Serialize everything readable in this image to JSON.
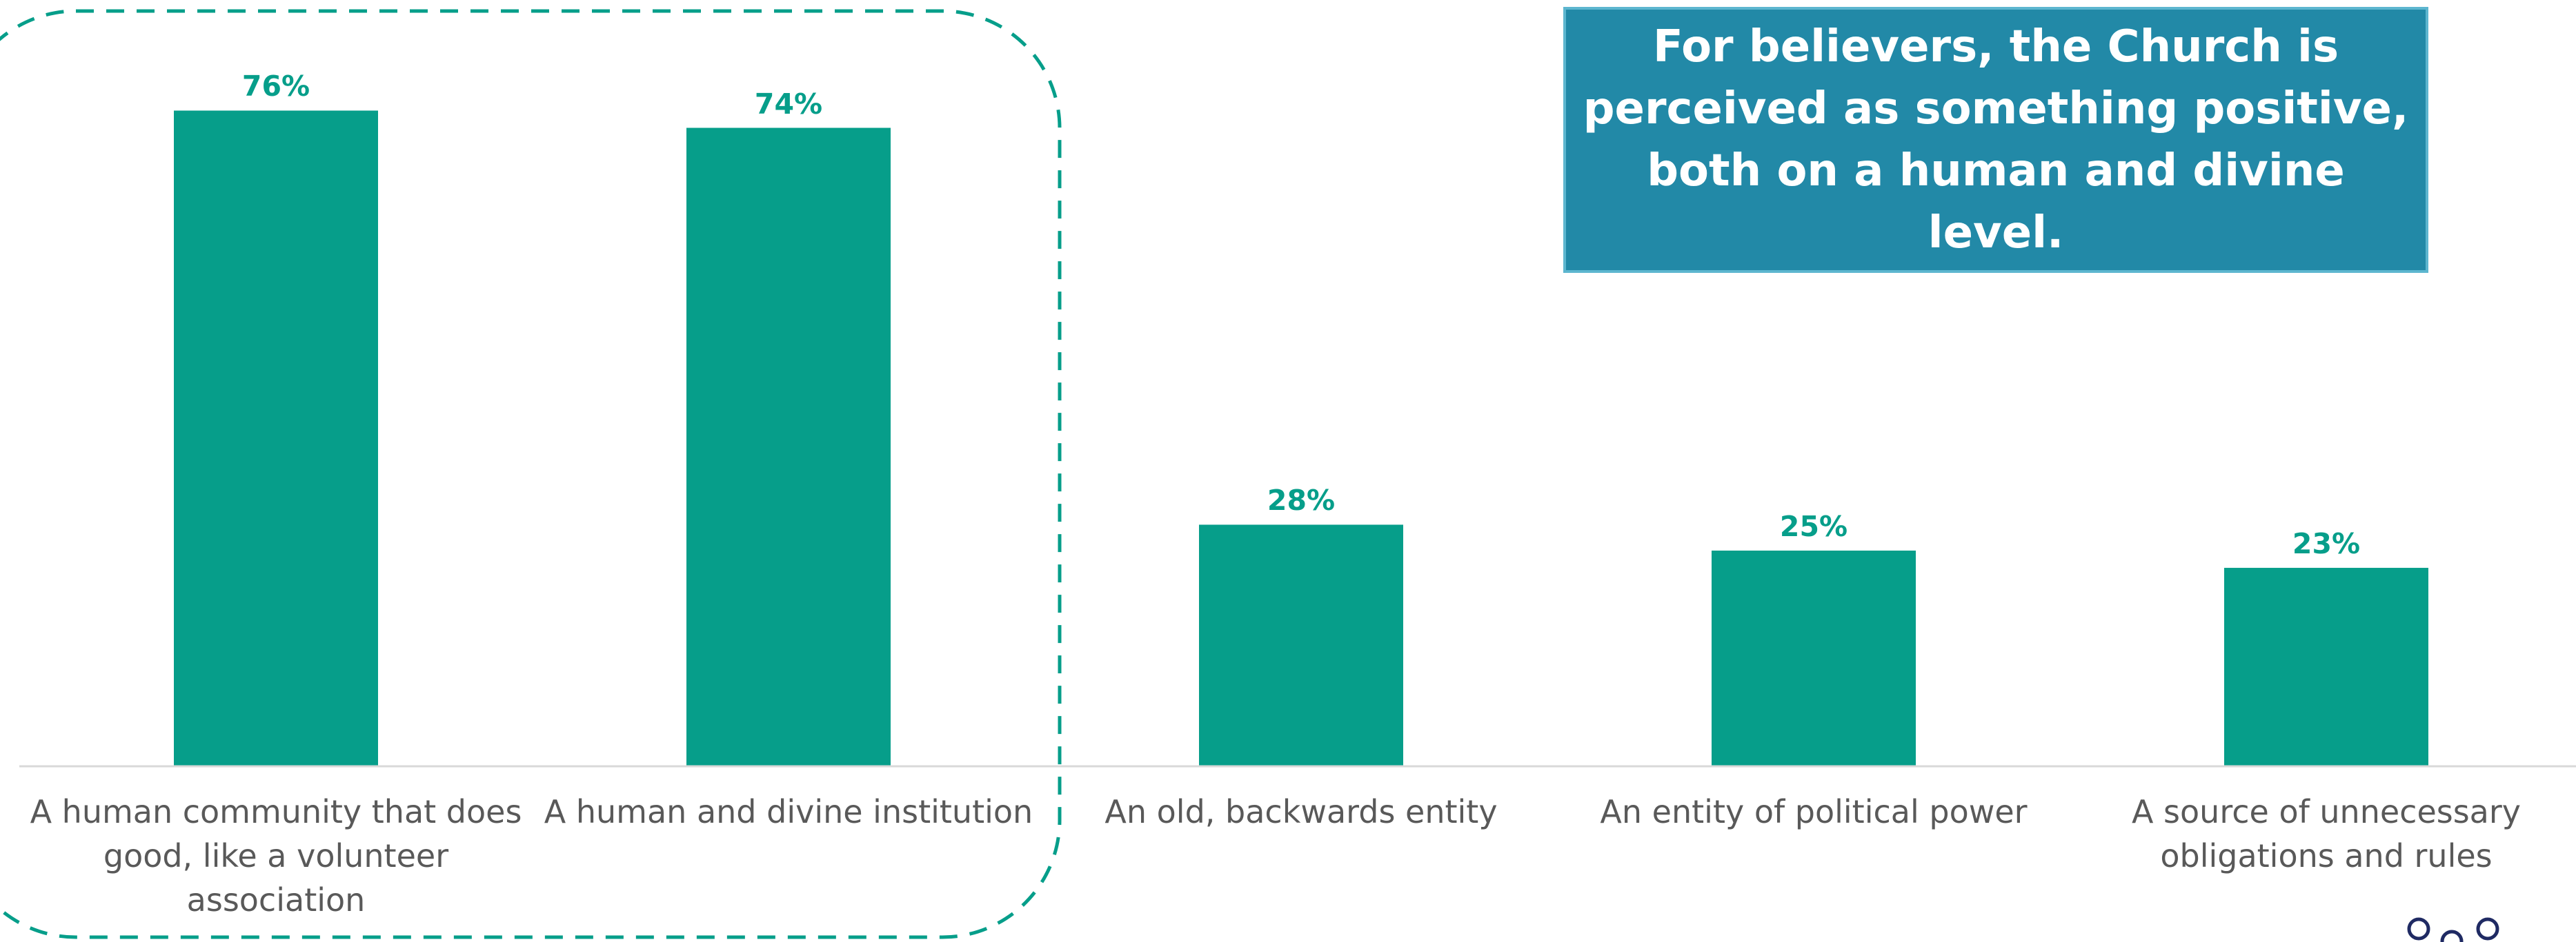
{
  "colors": {
    "bar": "#069E8A",
    "callout_bg": "#2289A7",
    "axis": "#D9D9D9",
    "label": "#595959"
  },
  "callout": {
    "text": "For believers, the Church is perceived as something positive, both on a human and divine level."
  },
  "chart_data": {
    "type": "bar",
    "categories": [
      "A human community that does good, like a volunteer association",
      "A human and divine institution",
      "An old, backwards entity",
      "An entity of political power",
      "A source of unnecessary obligations and rules"
    ],
    "values": [
      76,
      74,
      28,
      25,
      23
    ],
    "value_labels": [
      "76%",
      "74%",
      "28%",
      "25%",
      "23%"
    ],
    "ylim": [
      0,
      100
    ],
    "grid": false,
    "highlight_categories": [
      0,
      1
    ]
  }
}
